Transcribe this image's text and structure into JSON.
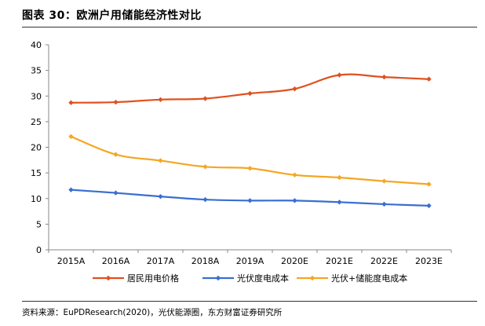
{
  "figure": {
    "title": "图表 30：欧洲户用储能经济性对比",
    "source": "资料来源：EuPDResearch(2020)，光伏能源圈，东方财富证券研究所"
  },
  "chart_data": {
    "type": "line",
    "title": "",
    "xlabel": "",
    "ylabel": "",
    "categories": [
      "2015A",
      "2016A",
      "2017A",
      "2018A",
      "2019A",
      "2020E",
      "2021E",
      "2022E",
      "2023E"
    ],
    "ylim": [
      0,
      40
    ],
    "yticks": [
      0,
      5,
      10,
      15,
      20,
      25,
      30,
      35,
      40
    ],
    "grid": false,
    "legend_position": "bottom",
    "series": [
      {
        "name": "居民用电价格",
        "color": "#e0511f",
        "values": [
          28.7,
          28.8,
          29.3,
          29.5,
          30.5,
          31.4,
          34.1,
          33.7,
          33.3
        ]
      },
      {
        "name": "光伏度电成本",
        "color": "#3a6fd0",
        "values": [
          11.7,
          11.1,
          10.4,
          9.8,
          9.6,
          9.6,
          9.3,
          8.9,
          8.6
        ]
      },
      {
        "name": "光伏+储能度电成本",
        "color": "#f5a623",
        "values": [
          22.1,
          18.6,
          17.4,
          16.2,
          15.9,
          14.6,
          14.1,
          13.4,
          12.8
        ]
      }
    ]
  }
}
